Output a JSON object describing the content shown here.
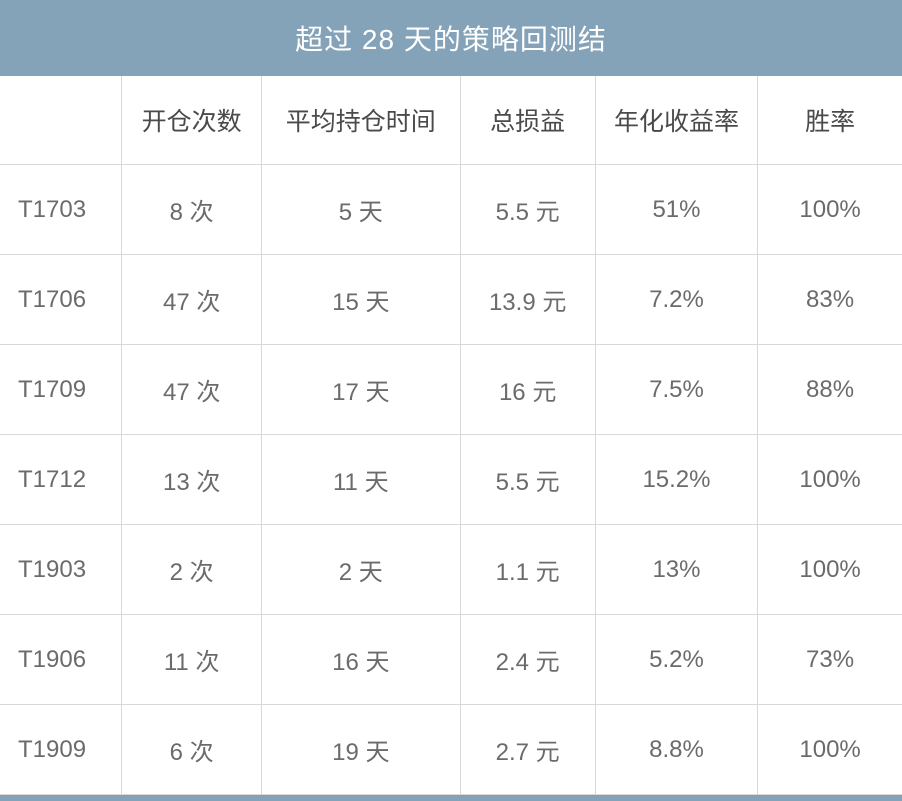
{
  "table": {
    "title": "超过 28 天的策略回测结",
    "title_bg": "#85a3b8",
    "title_color": "#ffffff",
    "title_fontsize": 28,
    "header_fontsize": 25,
    "cell_fontsize": 24,
    "border_color": "#d8d8d8",
    "header_text_color": "#4a4a4a",
    "cell_text_color": "#6b6b6b",
    "columns": [
      "",
      "开仓次数",
      "平均持仓时间",
      "总损益",
      "年化收益率",
      "胜率"
    ],
    "column_widths_pct": [
      13.5,
      15.5,
      22,
      15,
      18,
      16
    ],
    "rows": [
      {
        "contract": "T1703",
        "count": "8 次",
        "avgtime": "5 天",
        "pnl": "5.5 元",
        "annual": "51%",
        "winrate": "100%"
      },
      {
        "contract": "T1706",
        "count": "47 次",
        "avgtime": "15 天",
        "pnl": "13.9 元",
        "annual": "7.2%",
        "winrate": "83%"
      },
      {
        "contract": "T1709",
        "count": "47 次",
        "avgtime": "17 天",
        "pnl": "16 元",
        "annual": "7.5%",
        "winrate": "88%"
      },
      {
        "contract": "T1712",
        "count": "13 次",
        "avgtime": "11 天",
        "pnl": "5.5 元",
        "annual": "15.2%",
        "winrate": "100%"
      },
      {
        "contract": "T1903",
        "count": "2 次",
        "avgtime": "2 天",
        "pnl": "1.1 元",
        "annual": "13%",
        "winrate": "100%"
      },
      {
        "contract": "T1906",
        "count": "11 次",
        "avgtime": "16 天",
        "pnl": "2.4 元",
        "annual": "5.2%",
        "winrate": "73%"
      },
      {
        "contract": "T1909",
        "count": "6 次",
        "avgtime": "19 天",
        "pnl": "2.7 元",
        "annual": "8.8%",
        "winrate": "100%"
      }
    ]
  }
}
